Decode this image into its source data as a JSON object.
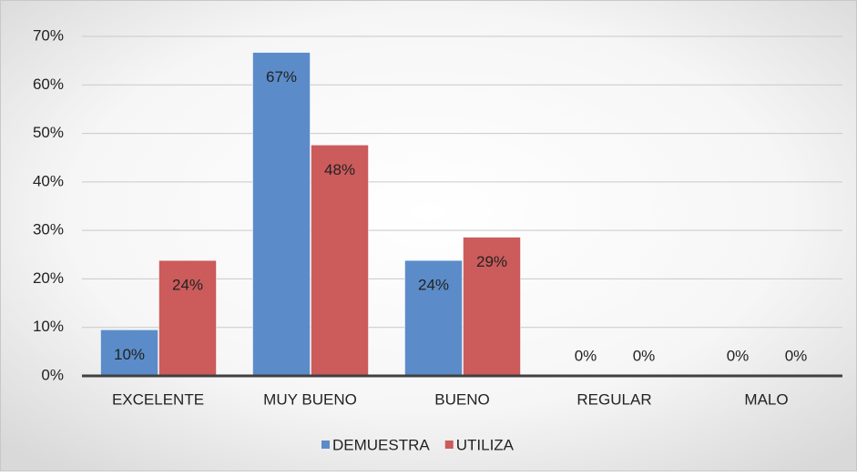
{
  "chart_data": {
    "type": "bar",
    "categories": [
      "EXCELENTE",
      "MUY BUENO",
      "BUENO",
      "REGULAR",
      "MALO"
    ],
    "series": [
      {
        "name": "DEMUESTRA",
        "color": "#5b8cc9",
        "values": [
          9.5,
          66.7,
          23.8,
          0,
          0
        ],
        "value_labels": [
          "10%",
          "67%",
          "24%",
          "0%",
          "0%"
        ]
      },
      {
        "name": "UTILIZA",
        "color": "#cc5b5b",
        "values": [
          23.8,
          47.6,
          28.6,
          0,
          0
        ],
        "value_labels": [
          "24%",
          "48%",
          "29%",
          "0%",
          "0%"
        ]
      }
    ],
    "ylim": [
      0,
      70
    ],
    "yticks": [
      {
        "value": 0,
        "label": "0%"
      },
      {
        "value": 10,
        "label": "10%"
      },
      {
        "value": 20,
        "label": "20%"
      },
      {
        "value": 30,
        "label": "30%"
      },
      {
        "value": 40,
        "label": "40%"
      },
      {
        "value": 50,
        "label": "50%"
      },
      {
        "value": 60,
        "label": "60%"
      },
      {
        "value": 70,
        "label": "70%"
      }
    ],
    "grid": true,
    "legend": "bottom"
  }
}
